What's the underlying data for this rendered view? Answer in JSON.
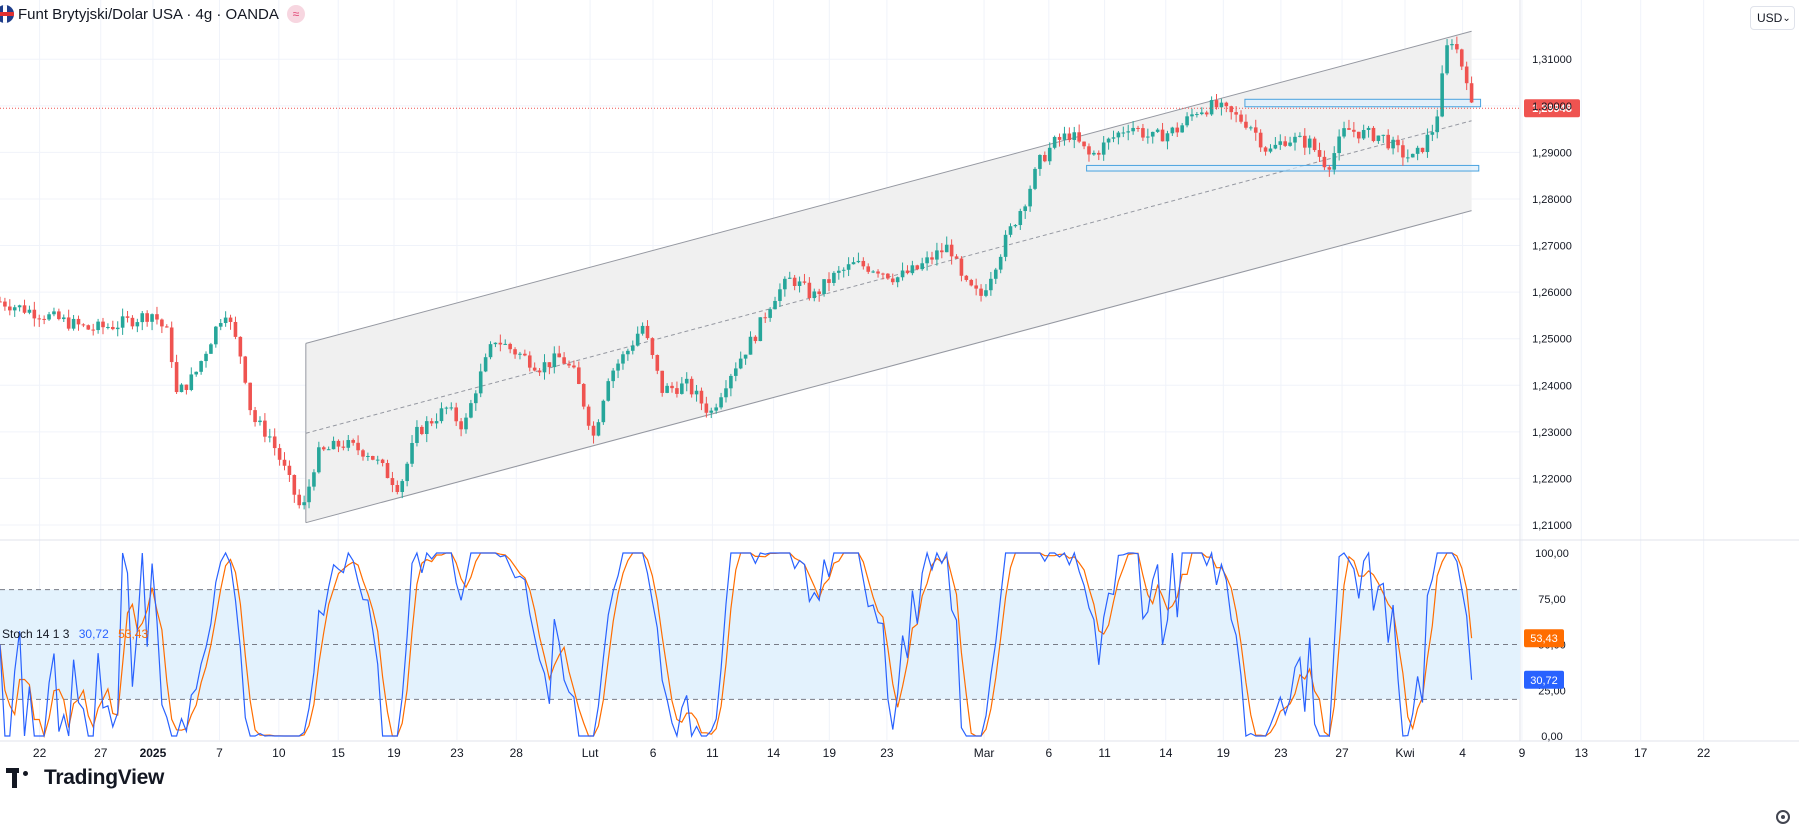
{
  "header": {
    "symbol_title": "Funt Brytyjski/Dolar USA · 4g · OANDA",
    "currency_button": "USD"
  },
  "indicator": {
    "label": "Stoch 14 1 3",
    "k_value": "30,72",
    "d_value": "53,43"
  },
  "branding": {
    "logo_text": "TradingView"
  },
  "colors": {
    "up": "#26a69a",
    "down": "#ef5350",
    "channel_fill": "#f0f0f0",
    "channel_line": "#9598a1",
    "zone_fill": "#dbeefc",
    "zone_border": "#4aa3df",
    "price_line": "#ef5350",
    "k_line": "#2962ff",
    "d_line": "#ff6d00",
    "stoch_band": "#e3f2fd"
  },
  "chart_data": {
    "type": "candlestick",
    "price_axis": {
      "range": [
        1.2085,
        1.321
      ],
      "ticks": [
        "1,31000",
        "1,30000",
        "1,29000",
        "1,28000",
        "1,27000",
        "1,26000",
        "1,25000",
        "1,24000",
        "1,23000",
        "1,22000",
        "1,21000"
      ],
      "tick_values": [
        1.31,
        1.3,
        1.29,
        1.28,
        1.27,
        1.26,
        1.25,
        1.24,
        1.23,
        1.22,
        1.21
      ],
      "last_price_label": "1,29948",
      "last_price": 1.29948
    },
    "time_axis": {
      "labels": [
        "22",
        "27",
        "2025",
        "7",
        "10",
        "15",
        "19",
        "23",
        "28",
        "Lut",
        "6",
        "11",
        "14",
        "19",
        "23",
        "Mar",
        "6",
        "11",
        "14",
        "19",
        "23",
        "27",
        "Kwi",
        "4",
        "9",
        "13",
        "17",
        "22"
      ],
      "label_positions": [
        0,
        5,
        9,
        12,
        15,
        18,
        21,
        24,
        27,
        30,
        33,
        36,
        39,
        42,
        45,
        48,
        51,
        54,
        57,
        60,
        63,
        66,
        69,
        72,
        75,
        78,
        81,
        84
      ],
      "label_fraction": [
        0.022,
        0.056,
        0.085,
        0.122,
        0.155,
        0.188,
        0.219,
        0.254,
        0.287,
        0.328,
        0.363,
        0.396,
        0.43,
        0.461,
        0.493,
        0.547,
        0.583,
        0.614,
        0.648,
        0.68,
        0.712,
        0.746,
        0.781,
        0.813,
        0.846,
        0.879,
        0.912,
        0.947
      ]
    },
    "waypoints": [
      [
        0,
        1.258
      ],
      [
        0.05,
        1.252
      ],
      [
        0.065,
        1.253
      ],
      [
        0.085,
        1.2555
      ],
      [
        0.094,
        1.2505
      ],
      [
        0.098,
        1.238
      ],
      [
        0.108,
        1.242
      ],
      [
        0.125,
        1.2565
      ],
      [
        0.135,
        1.245
      ],
      [
        0.14,
        1.233
      ],
      [
        0.15,
        1.229
      ],
      [
        0.158,
        1.222
      ],
      [
        0.168,
        1.2125
      ],
      [
        0.176,
        1.225
      ],
      [
        0.19,
        1.2275
      ],
      [
        0.205,
        1.2255
      ],
      [
        0.222,
        1.218
      ],
      [
        0.232,
        1.23
      ],
      [
        0.248,
        1.235
      ],
      [
        0.258,
        1.231
      ],
      [
        0.265,
        1.24
      ],
      [
        0.275,
        1.25
      ],
      [
        0.285,
        1.2475
      ],
      [
        0.3,
        1.244
      ],
      [
        0.312,
        1.246
      ],
      [
        0.32,
        1.242
      ],
      [
        0.33,
        1.229
      ],
      [
        0.338,
        1.242
      ],
      [
        0.35,
        1.248
      ],
      [
        0.357,
        1.253
      ],
      [
        0.368,
        1.239
      ],
      [
        0.382,
        1.24
      ],
      [
        0.395,
        1.234
      ],
      [
        0.405,
        1.242
      ],
      [
        0.42,
        1.251
      ],
      [
        0.43,
        1.259
      ],
      [
        0.44,
        1.263
      ],
      [
        0.452,
        1.259
      ],
      [
        0.462,
        1.263
      ],
      [
        0.475,
        1.266
      ],
      [
        0.488,
        1.265
      ],
      [
        0.498,
        1.263
      ],
      [
        0.51,
        1.265
      ],
      [
        0.52,
        1.268
      ],
      [
        0.528,
        1.27
      ],
      [
        0.535,
        1.262
      ],
      [
        0.545,
        1.259
      ],
      [
        0.552,
        1.265
      ],
      [
        0.56,
        1.272
      ],
      [
        0.57,
        1.28
      ],
      [
        0.578,
        1.288
      ],
      [
        0.586,
        1.292
      ],
      [
        0.595,
        1.294
      ],
      [
        0.606,
        1.289
      ],
      [
        0.615,
        1.292
      ],
      [
        0.628,
        1.296
      ],
      [
        0.64,
        1.293
      ],
      [
        0.655,
        1.295
      ],
      [
        0.665,
        1.299
      ],
      [
        0.675,
        1.3
      ],
      [
        0.685,
        1.298
      ],
      [
        0.695,
        1.296
      ],
      [
        0.705,
        1.29
      ],
      [
        0.715,
        1.293
      ],
      [
        0.728,
        1.292
      ],
      [
        0.738,
        1.287
      ],
      [
        0.748,
        1.295
      ],
      [
        0.758,
        1.294
      ],
      [
        0.768,
        1.2935
      ],
      [
        0.778,
        1.29
      ],
      [
        0.786,
        1.2885
      ],
      [
        0.792,
        1.292
      ],
      [
        0.798,
        1.296
      ],
      [
        0.804,
        1.312
      ],
      [
        0.808,
        1.315
      ],
      [
        0.811,
        1.31
      ],
      [
        0.815,
        1.307
      ],
      [
        0.818,
        1.2995
      ]
    ],
    "stochastic": {
      "range": [
        0,
        100
      ],
      "ticks": [
        "100,00",
        "75,00",
        "50,00",
        "25,00",
        "0,00"
      ],
      "tick_values": [
        100,
        75,
        50,
        25,
        0
      ],
      "overbought": 80,
      "middle": 50,
      "oversold": 20,
      "k_last": 30.72,
      "d_last": 53.43
    },
    "drawings": {
      "channel": {
        "start_x": 0.17,
        "end_x": 0.818,
        "upper": [
          1.249,
          1.316
        ],
        "lower": [
          1.2105,
          1.2775
        ],
        "middle": [
          1.2297,
          1.2968
        ]
      },
      "resistance_zone": {
        "start_x": 0.692,
        "end_x": 0.823,
        "top": 1.3014,
        "bottom": 1.2998
      },
      "support_zone": {
        "start_x": 0.604,
        "end_x": 0.822,
        "top": 1.2872,
        "bottom": 1.286
      }
    }
  }
}
